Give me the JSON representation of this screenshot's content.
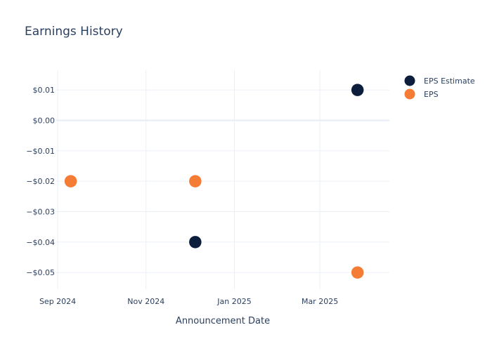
{
  "chart_data": {
    "type": "scatter",
    "title": "Earnings History",
    "xlabel": "Announcement Date",
    "ylabel": "",
    "x_ticks": [
      {
        "date": "2024-09-01",
        "label": "Sep 2024"
      },
      {
        "date": "2024-11-01",
        "label": "Nov 2024"
      },
      {
        "date": "2025-01-01",
        "label": "Jan 2025"
      },
      {
        "date": "2025-03-01",
        "label": "Mar 2025"
      }
    ],
    "y_ticks": [
      {
        "value": 0.01,
        "label": "$0.01"
      },
      {
        "value": 0.0,
        "label": "$0.00"
      },
      {
        "value": -0.01,
        "label": "−$0.01"
      },
      {
        "value": -0.02,
        "label": "−$0.02"
      },
      {
        "value": -0.03,
        "label": "−$0.03"
      },
      {
        "value": -0.04,
        "label": "−$0.04"
      },
      {
        "value": -0.05,
        "label": "−$0.05"
      }
    ],
    "xlim": [
      "2024-08-31",
      "2025-04-18"
    ],
    "ylim": [
      -0.0555,
      0.0165
    ],
    "grid": true,
    "legend_position": "top-right",
    "series": [
      {
        "name": "EPS Estimate",
        "color": "#0d1e3d",
        "points": [
          {
            "x": "2024-09-10",
            "y": -0.02
          },
          {
            "x": "2024-12-05",
            "y": -0.04
          },
          {
            "x": "2025-03-27",
            "y": 0.01
          }
        ]
      },
      {
        "name": "EPS",
        "color": "#f47c34",
        "points": [
          {
            "x": "2024-09-10",
            "y": -0.02
          },
          {
            "x": "2024-12-05",
            "y": -0.02
          },
          {
            "x": "2025-03-27",
            "y": -0.05
          }
        ]
      }
    ]
  }
}
